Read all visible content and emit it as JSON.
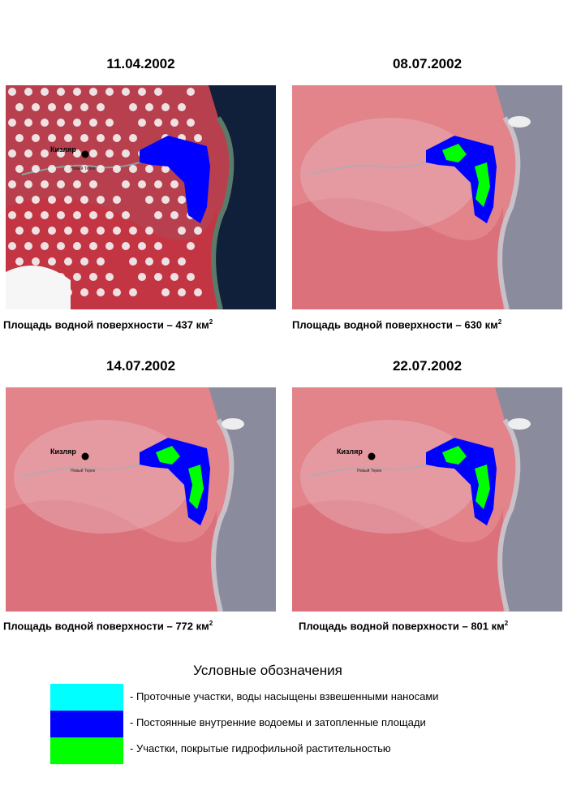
{
  "panels": [
    {
      "date": "11.04.2002",
      "caption": "Площадь водной поверхности – 437 км",
      "caption_sup": "2",
      "city": "Кизляр",
      "river": "Новый Терек"
    },
    {
      "date": "08.07.2002",
      "caption": "Площадь водной поверхности – 630 км",
      "caption_sup": "2"
    },
    {
      "date": "14.07.2002",
      "caption": "Площадь водной поверхности – 772 км",
      "caption_sup": "2",
      "city": "Кизляр",
      "river": "Новый Терек"
    },
    {
      "date": "22.07.2002",
      "caption": "Площадь водной поверхности – 801 км",
      "caption_sup": "2",
      "city": "Кизляр",
      "river": "Новый Терек"
    }
  ],
  "legend": {
    "title": "Условные обозначения",
    "items": [
      {
        "label": "- Проточные участки, воды насыщены взвешенными наносами",
        "color": "#00ffff"
      },
      {
        "label": "- Постоянные внутренние водоемы и затопленные площади",
        "color": "#0000ff"
      },
      {
        "label": "- Участки, покрытые гидрофильной растительностью",
        "color": "#00ff00"
      }
    ]
  }
}
